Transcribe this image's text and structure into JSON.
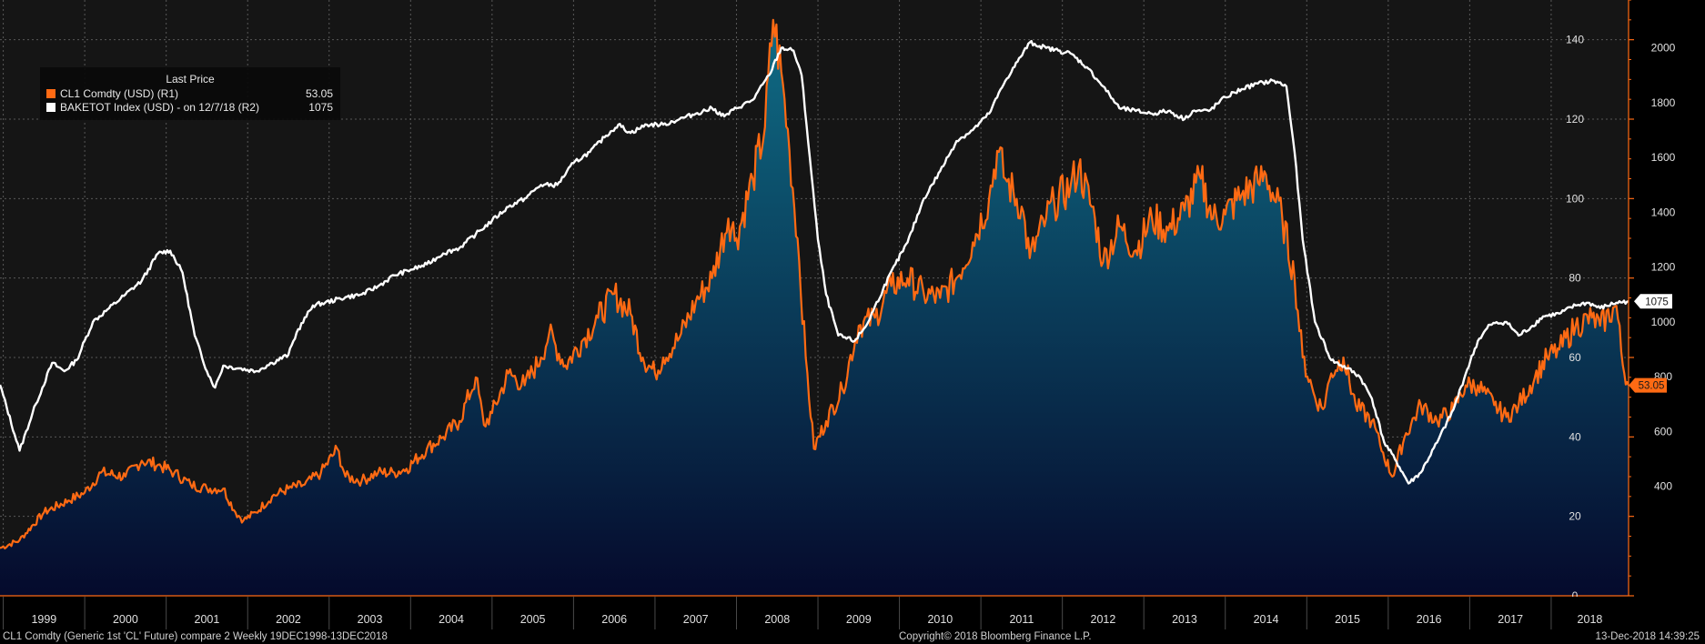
{
  "legend": {
    "title": "Last Price",
    "entries": [
      {
        "label": "CL1 Comdty (USD)  (R1)",
        "value": "53.05",
        "color": "#ff6a13"
      },
      {
        "label": "BAKETOT Index (USD) -  on 12/7/18  (R2)",
        "value": "1075",
        "color": "#ffffff"
      }
    ]
  },
  "footer": {
    "left": "CL1 Comdty (Generic 1st 'CL' Future) compare 2  Weekly 19DEC1998-13DEC2018",
    "center": "Copyright© 2018 Bloomberg Finance L.P.",
    "right": "13-Dec-2018 14:39:25"
  },
  "chart_data": {
    "type": "line",
    "title": "",
    "x_range": [
      1998.96,
      2018.95
    ],
    "x_categories": [
      "1999",
      "2000",
      "2001",
      "2002",
      "2003",
      "2004",
      "2005",
      "2006",
      "2007",
      "2008",
      "2009",
      "2010",
      "2011",
      "2012",
      "2013",
      "2014",
      "2015",
      "2016",
      "2017",
      "2018"
    ],
    "axes": {
      "r1": {
        "label": "CL1 Comdty (USD)",
        "range": [
          0,
          150
        ],
        "ticks": [
          0,
          20,
          40,
          60,
          80,
          100,
          120,
          140
        ],
        "color": "#ff6a13"
      },
      "r2": {
        "label": "BAKETOT Index",
        "range": [
          0,
          2175
        ],
        "ticks": [
          400,
          600,
          800,
          1000,
          1200,
          1400,
          1600,
          1800,
          2000
        ],
        "color": "#ffffff"
      }
    },
    "last_labels": {
      "r1": "53.05",
      "r2": "1075"
    },
    "colors": {
      "r1": "#ff6a13",
      "r2": "#ffffff",
      "fill_top": "#0f6d86",
      "fill_bottom": "#050a2c",
      "background": "#151515",
      "grid": "#585858"
    },
    "series": [
      {
        "name": "CL1 Comdty (USD)",
        "axis": "r1",
        "points": [
          [
            1998.96,
            12
          ],
          [
            1999.2,
            14
          ],
          [
            1999.5,
            21
          ],
          [
            1999.8,
            24
          ],
          [
            2000.0,
            26
          ],
          [
            2000.2,
            31
          ],
          [
            2000.5,
            30
          ],
          [
            2000.7,
            34
          ],
          [
            2000.9,
            33
          ],
          [
            2001.1,
            31
          ],
          [
            2001.3,
            28
          ],
          [
            2001.5,
            27
          ],
          [
            2001.7,
            27
          ],
          [
            2001.85,
            21
          ],
          [
            2001.95,
            19
          ],
          [
            2002.1,
            21
          ],
          [
            2002.3,
            25
          ],
          [
            2002.5,
            27
          ],
          [
            2002.7,
            28
          ],
          [
            2002.9,
            31
          ],
          [
            2003.1,
            37
          ],
          [
            2003.2,
            30
          ],
          [
            2003.4,
            29
          ],
          [
            2003.6,
            31
          ],
          [
            2003.8,
            31
          ],
          [
            2003.95,
            32
          ],
          [
            2004.2,
            37
          ],
          [
            2004.4,
            40
          ],
          [
            2004.6,
            44
          ],
          [
            2004.8,
            55
          ],
          [
            2004.9,
            43
          ],
          [
            2005.0,
            46
          ],
          [
            2005.2,
            56
          ],
          [
            2005.4,
            53
          ],
          [
            2005.6,
            60
          ],
          [
            2005.7,
            66
          ],
          [
            2005.9,
            58
          ],
          [
            2006.1,
            64
          ],
          [
            2006.3,
            70
          ],
          [
            2006.5,
            76
          ],
          [
            2006.7,
            71
          ],
          [
            2006.85,
            60
          ],
          [
            2007.0,
            56
          ],
          [
            2007.1,
            60
          ],
          [
            2007.3,
            65
          ],
          [
            2007.5,
            74
          ],
          [
            2007.7,
            80
          ],
          [
            2007.9,
            95
          ],
          [
            2008.0,
            90
          ],
          [
            2008.2,
            105
          ],
          [
            2008.35,
            118
          ],
          [
            2008.45,
            145
          ],
          [
            2008.55,
            132
          ],
          [
            2008.65,
            112
          ],
          [
            2008.75,
            90
          ],
          [
            2008.85,
            60
          ],
          [
            2008.95,
            37
          ],
          [
            2009.1,
            44
          ],
          [
            2009.3,
            52
          ],
          [
            2009.5,
            68
          ],
          [
            2009.7,
            70
          ],
          [
            2009.9,
            78
          ],
          [
            2010.1,
            80
          ],
          [
            2010.3,
            76
          ],
          [
            2010.5,
            75
          ],
          [
            2010.7,
            80
          ],
          [
            2010.9,
            89
          ],
          [
            2011.1,
            100
          ],
          [
            2011.2,
            112
          ],
          [
            2011.3,
            105
          ],
          [
            2011.5,
            98
          ],
          [
            2011.6,
            85
          ],
          [
            2011.8,
            95
          ],
          [
            2011.9,
            99
          ],
          [
            2012.1,
            103
          ],
          [
            2012.2,
            108
          ],
          [
            2012.4,
            95
          ],
          [
            2012.5,
            84
          ],
          [
            2012.7,
            93
          ],
          [
            2012.9,
            87
          ],
          [
            2013.1,
            95
          ],
          [
            2013.3,
            92
          ],
          [
            2013.5,
            97
          ],
          [
            2013.7,
            105
          ],
          [
            2013.85,
            95
          ],
          [
            2014.0,
            96
          ],
          [
            2014.2,
            101
          ],
          [
            2014.4,
            104
          ],
          [
            2014.5,
            106
          ],
          [
            2014.7,
            95
          ],
          [
            2014.85,
            80
          ],
          [
            2014.95,
            60
          ],
          [
            2015.1,
            50
          ],
          [
            2015.2,
            47
          ],
          [
            2015.3,
            56
          ],
          [
            2015.45,
            60
          ],
          [
            2015.6,
            48
          ],
          [
            2015.8,
            44
          ],
          [
            2015.9,
            38
          ],
          [
            2016.05,
            30
          ],
          [
            2016.2,
            40
          ],
          [
            2016.4,
            48
          ],
          [
            2016.6,
            44
          ],
          [
            2016.8,
            47
          ],
          [
            2016.95,
            53
          ],
          [
            2017.1,
            53
          ],
          [
            2017.3,
            48
          ],
          [
            2017.45,
            45
          ],
          [
            2017.6,
            48
          ],
          [
            2017.8,
            55
          ],
          [
            2017.95,
            60
          ],
          [
            2018.1,
            62
          ],
          [
            2018.3,
            68
          ],
          [
            2018.5,
            70
          ],
          [
            2018.6,
            68
          ],
          [
            2018.8,
            73
          ],
          [
            2018.88,
            58
          ],
          [
            2018.95,
            53
          ]
        ]
      },
      {
        "name": "BAKETOT Index (USD)",
        "axis": "r2",
        "points": [
          [
            1998.96,
            770
          ],
          [
            1999.2,
            530
          ],
          [
            1999.4,
            700
          ],
          [
            1999.6,
            850
          ],
          [
            1999.75,
            820
          ],
          [
            1999.9,
            860
          ],
          [
            2000.1,
            1000
          ],
          [
            2000.3,
            1050
          ],
          [
            2000.5,
            1100
          ],
          [
            2000.7,
            1150
          ],
          [
            2000.9,
            1250
          ],
          [
            2001.05,
            1260
          ],
          [
            2001.2,
            1180
          ],
          [
            2001.35,
            950
          ],
          [
            2001.5,
            820
          ],
          [
            2001.6,
            760
          ],
          [
            2001.7,
            840
          ],
          [
            2001.9,
            830
          ],
          [
            2002.1,
            820
          ],
          [
            2002.3,
            850
          ],
          [
            2002.5,
            880
          ],
          [
            2002.6,
            960
          ],
          [
            2002.8,
            1060
          ],
          [
            2002.95,
            1070
          ],
          [
            2003.2,
            1090
          ],
          [
            2003.4,
            1100
          ],
          [
            2003.6,
            1130
          ],
          [
            2003.8,
            1170
          ],
          [
            2004.0,
            1190
          ],
          [
            2004.2,
            1210
          ],
          [
            2004.4,
            1250
          ],
          [
            2004.6,
            1270
          ],
          [
            2004.8,
            1320
          ],
          [
            2005.0,
            1370
          ],
          [
            2005.2,
            1420
          ],
          [
            2005.4,
            1450
          ],
          [
            2005.6,
            1500
          ],
          [
            2005.8,
            1500
          ],
          [
            2006.0,
            1580
          ],
          [
            2006.2,
            1620
          ],
          [
            2006.4,
            1680
          ],
          [
            2006.55,
            1720
          ],
          [
            2006.7,
            1690
          ],
          [
            2006.9,
            1720
          ],
          [
            2007.1,
            1720
          ],
          [
            2007.3,
            1740
          ],
          [
            2007.5,
            1760
          ],
          [
            2007.7,
            1780
          ],
          [
            2007.85,
            1750
          ],
          [
            2008.0,
            1780
          ],
          [
            2008.2,
            1810
          ],
          [
            2008.4,
            1900
          ],
          [
            2008.55,
            2000
          ],
          [
            2008.7,
            1990
          ],
          [
            2008.8,
            1900
          ],
          [
            2008.9,
            1600
          ],
          [
            2009.0,
            1300
          ],
          [
            2009.1,
            1100
          ],
          [
            2009.25,
            950
          ],
          [
            2009.45,
            930
          ],
          [
            2009.6,
            990
          ],
          [
            2009.8,
            1120
          ],
          [
            2009.95,
            1210
          ],
          [
            2010.1,
            1290
          ],
          [
            2010.3,
            1450
          ],
          [
            2010.5,
            1550
          ],
          [
            2010.7,
            1660
          ],
          [
            2010.9,
            1700
          ],
          [
            2011.1,
            1760
          ],
          [
            2011.3,
            1880
          ],
          [
            2011.45,
            1950
          ],
          [
            2011.6,
            2020
          ],
          [
            2011.8,
            2000
          ],
          [
            2011.95,
            1990
          ],
          [
            2012.1,
            1980
          ],
          [
            2012.3,
            1930
          ],
          [
            2012.5,
            1860
          ],
          [
            2012.7,
            1780
          ],
          [
            2012.9,
            1770
          ],
          [
            2013.1,
            1760
          ],
          [
            2013.3,
            1770
          ],
          [
            2013.5,
            1740
          ],
          [
            2013.6,
            1770
          ],
          [
            2013.8,
            1770
          ],
          [
            2014.0,
            1820
          ],
          [
            2014.2,
            1850
          ],
          [
            2014.4,
            1870
          ],
          [
            2014.6,
            1880
          ],
          [
            2014.75,
            1860
          ],
          [
            2014.85,
            1620
          ],
          [
            2014.95,
            1300
          ],
          [
            2015.1,
            1000
          ],
          [
            2015.3,
            860
          ],
          [
            2015.5,
            830
          ],
          [
            2015.65,
            800
          ],
          [
            2015.8,
            720
          ],
          [
            2015.95,
            560
          ],
          [
            2016.1,
            490
          ],
          [
            2016.25,
            410
          ],
          [
            2016.4,
            450
          ],
          [
            2016.6,
            560
          ],
          [
            2016.8,
            680
          ],
          [
            2016.95,
            810
          ],
          [
            2017.1,
            930
          ],
          [
            2017.25,
            990
          ],
          [
            2017.45,
            1000
          ],
          [
            2017.6,
            950
          ],
          [
            2017.75,
            980
          ],
          [
            2017.9,
            1020
          ],
          [
            2018.1,
            1030
          ],
          [
            2018.3,
            1060
          ],
          [
            2018.45,
            1070
          ],
          [
            2018.6,
            1050
          ],
          [
            2018.8,
            1070
          ],
          [
            2018.95,
            1075
          ]
        ]
      }
    ]
  }
}
